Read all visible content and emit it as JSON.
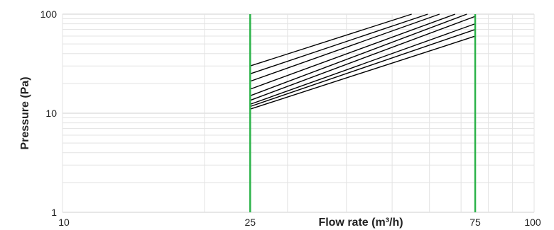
{
  "chart_data": {
    "type": "line",
    "x_scale": "log",
    "y_scale": "log",
    "xlim": [
      10,
      100
    ],
    "ylim": [
      1,
      100
    ],
    "x_ticks": [
      10,
      25,
      75,
      100
    ],
    "x_tick_labels": [
      "10",
      "25",
      "75",
      "100"
    ],
    "y_ticks": [
      1,
      10,
      100
    ],
    "y_tick_labels": [
      "1",
      "10",
      "100"
    ],
    "xlabel": "Flow rate (m³/h)",
    "ylabel": "Pressure (Pa)",
    "grid": true,
    "reference_lines": [
      {
        "axis": "x",
        "value": 25,
        "color": "#2db34a"
      },
      {
        "axis": "x",
        "value": 75,
        "color": "#2db34a"
      }
    ],
    "series_color": "#000000",
    "series": [
      {
        "x": [
          25,
          55
        ],
        "y": [
          30,
          100
        ]
      },
      {
        "x": [
          25,
          59.5
        ],
        "y": [
          25,
          100
        ]
      },
      {
        "x": [
          25,
          63
        ],
        "y": [
          21,
          100
        ]
      },
      {
        "x": [
          25,
          68
        ],
        "y": [
          17.5,
          100
        ]
      },
      {
        "x": [
          25,
          72
        ],
        "y": [
          15,
          100
        ]
      },
      {
        "x": [
          25,
          75
        ],
        "y": [
          13.5,
          95
        ]
      },
      {
        "x": [
          25,
          75
        ],
        "y": [
          12.3,
          80
        ]
      },
      {
        "x": [
          25,
          75
        ],
        "y": [
          11.7,
          70
        ]
      },
      {
        "x": [
          25,
          75
        ],
        "y": [
          11,
          60
        ]
      }
    ]
  }
}
